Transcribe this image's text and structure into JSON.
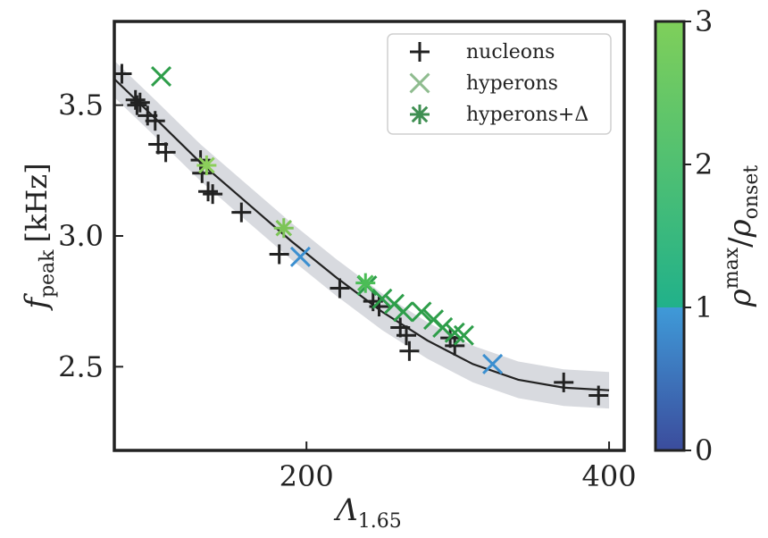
{
  "chart_data": {
    "type": "scatter",
    "xlabel_main": "Λ",
    "xlabel_sub": "1.65",
    "ylabel_main": "f",
    "ylabel_sub": "peak",
    "ylabel_unit": "[kHz]",
    "xlim": [
      73,
      410
    ],
    "ylim": [
      2.18,
      3.82
    ],
    "xticks": [
      200,
      400
    ],
    "yticks": [
      2.5,
      3.0,
      3.5
    ],
    "ytick_labels": [
      "2.5",
      "3.0",
      "3.5"
    ],
    "grid": false,
    "legend_position": "top-right",
    "legend": [
      {
        "label": "nucleons",
        "marker": "plus",
        "color": "#222222"
      },
      {
        "label": "hyperons",
        "marker": "x",
        "color": "#8fbc8f"
      },
      {
        "label": "hyperons+Δ",
        "marker": "asterisk",
        "color": "#3f8f52"
      }
    ],
    "fit_curve": {
      "color": "#222222",
      "band_color": "#d8dadf",
      "x": [
        73,
        100,
        130,
        160,
        190,
        220,
        250,
        280,
        310,
        340,
        370,
        400
      ],
      "y": [
        3.6,
        3.45,
        3.28,
        3.13,
        2.98,
        2.84,
        2.71,
        2.6,
        2.51,
        2.45,
        2.42,
        2.41
      ],
      "band_half_width": 0.07
    },
    "series": [
      {
        "name": "nucleons",
        "marker": "plus",
        "color": "#222222",
        "points": [
          [
            78,
            3.62
          ],
          [
            87,
            3.52
          ],
          [
            88,
            3.5
          ],
          [
            90,
            3.51
          ],
          [
            95,
            3.46
          ],
          [
            100,
            3.44
          ],
          [
            102,
            3.35
          ],
          [
            107,
            3.32
          ],
          [
            130,
            3.29
          ],
          [
            131,
            3.24
          ],
          [
            135,
            3.17
          ],
          [
            138,
            3.16
          ],
          [
            157,
            3.09
          ],
          [
            182,
            2.93
          ],
          [
            222,
            2.8
          ],
          [
            244,
            2.75
          ],
          [
            248,
            2.73
          ],
          [
            262,
            2.65
          ],
          [
            266,
            2.62
          ],
          [
            268,
            2.56
          ],
          [
            295,
            2.61
          ],
          [
            298,
            2.58
          ],
          [
            370,
            2.44
          ],
          [
            393,
            2.39
          ]
        ]
      },
      {
        "name": "hyperons",
        "marker": "x",
        "points": [
          {
            "x": 104,
            "y": 3.61,
            "color": "#2e9e4a"
          },
          {
            "x": 196,
            "y": 2.92,
            "color": "#3b8fd0"
          },
          {
            "x": 240,
            "y": 2.81,
            "color": "#2e9e4a"
          },
          {
            "x": 250,
            "y": 2.76,
            "color": "#2e9e4a"
          },
          {
            "x": 258,
            "y": 2.74,
            "color": "#2e9e4a"
          },
          {
            "x": 264,
            "y": 2.71,
            "color": "#2e9e4a"
          },
          {
            "x": 276,
            "y": 2.71,
            "color": "#2e9e4a"
          },
          {
            "x": 284,
            "y": 2.68,
            "color": "#2e9e4a"
          },
          {
            "x": 290,
            "y": 2.65,
            "color": "#2e9e4a"
          },
          {
            "x": 298,
            "y": 2.63,
            "color": "#2e9e4a"
          },
          {
            "x": 304,
            "y": 2.62,
            "color": "#2e9e4a"
          },
          {
            "x": 323,
            "y": 2.51,
            "color": "#3b8fd0"
          }
        ]
      },
      {
        "name": "hyperons+Δ",
        "marker": "asterisk",
        "points": [
          {
            "x": 134,
            "y": 3.27,
            "color": "#8bcf5a"
          },
          {
            "x": 185,
            "y": 3.03,
            "color": "#7cc457"
          },
          {
            "x": 239,
            "y": 2.82,
            "color": "#4bbd56"
          }
        ]
      }
    ],
    "colorbar": {
      "label_main": "ρ",
      "label_sup": "max",
      "label_div": "/",
      "label_sub_main": "ρ",
      "label_sub": "onset",
      "range": [
        0,
        3
      ],
      "ticks": [
        0,
        1,
        2,
        3
      ],
      "tick_labels": [
        "0",
        "1",
        "2",
        "3"
      ],
      "segments": [
        {
          "from": 0,
          "to": 1,
          "color_bottom": "#3b4c9c",
          "color_top": "#3f9ad8"
        },
        {
          "from": 1,
          "to": 3,
          "color_bottom": "#21b18a",
          "color_top": "#7fcf5a"
        }
      ]
    }
  }
}
